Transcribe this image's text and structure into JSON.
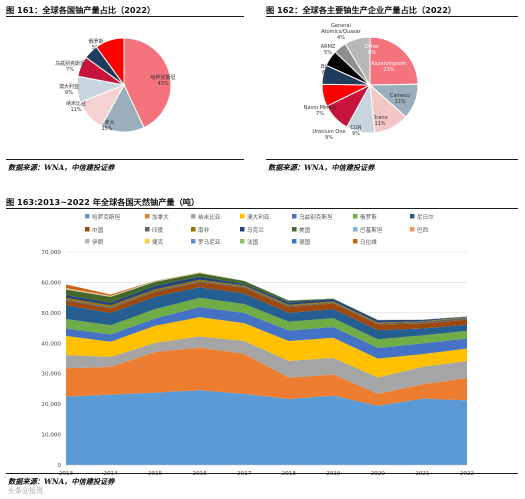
{
  "figures": {
    "fig161": {
      "title": "图 161：全球各国铀产量占比（2022）",
      "source": "数据来源：WNA，中信建投证券"
    },
    "fig162": {
      "title": "图 162：全球各主要铀生产企业产量占比（2022）",
      "source": "数据来源：WNA，中信建投证券"
    },
    "fig163": {
      "title": "图 163:2013~2022 年全球各国天然铀产量（吨）",
      "source": "数据来源：WNA，中信建投证券"
    }
  },
  "watermark": "头条@投资",
  "chart_data": [
    {
      "type": "pie",
      "slices": [
        {
          "label": "哈萨克斯坦",
          "value": 43,
          "value_label": "43%",
          "color": "#f4737d"
        },
        {
          "label": "加拿大",
          "value": 15,
          "value_label": "15%",
          "color": "#9aaebc"
        },
        {
          "label": "纳米比亚",
          "value": 11,
          "value_label": "11%",
          "color": "#f4d2d2"
        },
        {
          "label": "澳大利亚",
          "value": 9,
          "value_label": "9%",
          "color": "#c9d5de"
        },
        {
          "label": "乌兹别克斯坦",
          "value": 7,
          "value_label": "7%",
          "color": "#c8143c"
        },
        {
          "label": "俄罗斯",
          "value": 5,
          "value_label": "5%",
          "color": "#1f3c5e"
        },
        {
          "label": "其他",
          "value": 10,
          "value_label": "",
          "color": "#ff0000"
        }
      ]
    },
    {
      "type": "pie",
      "slices": [
        {
          "label": "Kazatomprom",
          "value": 23,
          "value_label": "23%",
          "color": "#f4737d"
        },
        {
          "label": "Cameco",
          "value": 11,
          "value_label": "11%",
          "color": "#9aaebc"
        },
        {
          "label": "Orano",
          "value": 11,
          "value_label": "11%",
          "color": "#f4c7c7"
        },
        {
          "label": "CGN",
          "value": 9,
          "value_label": "9%",
          "color": "#c9d5de"
        },
        {
          "label": "Uranium One",
          "value": 9,
          "value_label": "9%",
          "color": "#c8143c"
        },
        {
          "label": "Navoi Mining",
          "value": 7,
          "value_label": "7%",
          "color": "#ff0000"
        },
        {
          "label": "BHP",
          "value": 6,
          "value_label": "6%",
          "color": "#1f3c5e"
        },
        {
          "label": "ARMZ",
          "value": 5,
          "value_label": "5%",
          "color": "#000000"
        },
        {
          "label": "General Atomics/Quasar",
          "value": 4,
          "value_label": "4%",
          "color": "#8f8f8f"
        },
        {
          "label": "Other",
          "value": 8,
          "value_label": "8%",
          "color": "#b8b8b8"
        }
      ]
    },
    {
      "type": "area",
      "x": [
        "2013",
        "2014",
        "2015",
        "2016",
        "2017",
        "2018",
        "2019",
        "2020",
        "2021",
        "2022"
      ],
      "ylim": [
        0,
        70000
      ],
      "yticks": [
        "0",
        "10,000",
        "20,000",
        "30,000",
        "40,000",
        "50,000",
        "60,000",
        "70,000"
      ],
      "grid": true,
      "legend_position": "top",
      "series": [
        {
          "name": "哈萨克斯坦",
          "color": "#5b9bd5",
          "values": [
            22451,
            23127,
            23800,
            24586,
            23391,
            21705,
            22808,
            19477,
            21819,
            21227
          ]
        },
        {
          "name": "加拿大",
          "color": "#ed7d31",
          "values": [
            9331,
            9134,
            13325,
            14039,
            13116,
            7001,
            6938,
            3885,
            4693,
            7351
          ]
        },
        {
          "name": "纳米比亚",
          "color": "#a5a5a5",
          "values": [
            4323,
            3255,
            2993,
            3654,
            4224,
            5525,
            5476,
            5413,
            5753,
            5613
          ]
        },
        {
          "name": "澳大利亚",
          "color": "#ffc000",
          "values": [
            6350,
            5001,
            5654,
            6315,
            5882,
            6517,
            6613,
            6203,
            4192,
            4087
          ]
        },
        {
          "name": "乌兹别克斯坦",
          "color": "#4472c4",
          "values": [
            2400,
            2400,
            2385,
            3325,
            3400,
            3450,
            3500,
            3500,
            3520,
            3300
          ]
        },
        {
          "name": "俄罗斯",
          "color": "#70ad47",
          "values": [
            3135,
            2990,
            3055,
            3004,
            2917,
            2904,
            2911,
            2846,
            2635,
            2508
          ]
        },
        {
          "name": "尼日尔",
          "color": "#255e91",
          "values": [
            4518,
            4057,
            4116,
            3479,
            3449,
            2911,
            2983,
            2991,
            2248,
            2020
          ]
        },
        {
          "name": "中国",
          "color": "#9e480e",
          "values": [
            1500,
            1500,
            1616,
            1616,
            1885,
            1885,
            1885,
            1885,
            1600,
            1700
          ]
        },
        {
          "name": "印度",
          "color": "#636363",
          "values": [
            385,
            385,
            385,
            385,
            421,
            423,
            308,
            400,
            600,
            600
          ]
        },
        {
          "name": "南非",
          "color": "#997300",
          "values": [
            531,
            573,
            393,
            490,
            308,
            346,
            346,
            250,
            192,
            200
          ]
        },
        {
          "name": "乌克兰",
          "color": "#264478",
          "values": [
            922,
            926,
            1200,
            1005,
            550,
            790,
            800,
            744,
            455,
            100
          ]
        },
        {
          "name": "美国",
          "color": "#43682b",
          "values": [
            1792,
            1919,
            1256,
            1125,
            940,
            582,
            58,
            6,
            8,
            75
          ]
        },
        {
          "name": "巴基斯坦",
          "color": "#7cafdd",
          "values": [
            45,
            45,
            45,
            45,
            45,
            45,
            45,
            45,
            45,
            45
          ]
        },
        {
          "name": "巴西",
          "color": "#f1975a",
          "values": [
            192,
            55,
            40,
            44,
            0,
            0,
            0,
            15,
            29,
            43
          ]
        },
        {
          "name": "伊朗",
          "color": "#b7b7b7",
          "values": [
            0,
            0,
            38,
            0,
            40,
            71,
            71,
            71,
            21,
            20
          ]
        },
        {
          "name": "捷克",
          "color": "#ffcd33",
          "values": [
            215,
            193,
            155,
            138,
            0,
            0,
            0,
            0,
            0,
            0
          ]
        },
        {
          "name": "罗马尼亚",
          "color": "#698ed0",
          "values": [
            77,
            77,
            77,
            50,
            0,
            0,
            0,
            0,
            0,
            0
          ]
        },
        {
          "name": "法国",
          "color": "#8cc168",
          "values": [
            5,
            3,
            2,
            0,
            0,
            0,
            0,
            0,
            0,
            0
          ]
        },
        {
          "name": "德国",
          "color": "#327dc2",
          "values": [
            27,
            33,
            0,
            0,
            0,
            0,
            0,
            0,
            0,
            0
          ]
        },
        {
          "name": "马拉维",
          "color": "#d26012",
          "values": [
            1132,
            369,
            0,
            0,
            0,
            0,
            0,
            0,
            0,
            0
          ]
        }
      ]
    }
  ]
}
